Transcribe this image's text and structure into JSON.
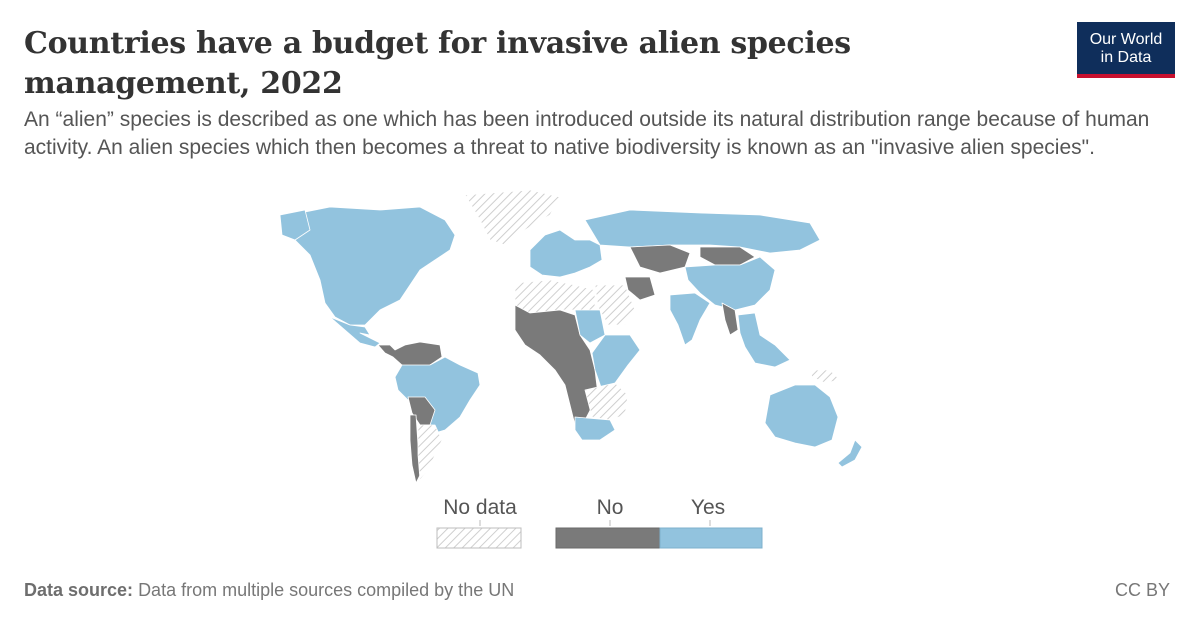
{
  "header": {
    "title": "Countries have a budget for invasive alien species management, 2022",
    "subtitle": "An “alien” species is described as one which has been introduced outside its natural distribution range because of human activity. An alien species which then becomes a threat to native biodiversity is known as an \"invasive alien species\"."
  },
  "logo": {
    "line1": "Our World",
    "line2": "in Data"
  },
  "colors": {
    "yes": "#92c3de",
    "no": "#7a7a7a",
    "no_data_hatch": "#cccccc",
    "border": "#ffffff"
  },
  "legend": {
    "no_data_label": "No data",
    "no_label": "No",
    "yes_label": "Yes"
  },
  "footer": {
    "source_label": "Data source:",
    "source_text": "Data from multiple sources compiled by the UN",
    "license": "CC BY"
  },
  "map": {
    "regions": [
      {
        "name": "North America",
        "status": "yes"
      },
      {
        "name": "Greenland",
        "status": "no_data"
      },
      {
        "name": "Mexico",
        "status": "yes"
      },
      {
        "name": "Central America",
        "status": "no"
      },
      {
        "name": "Brazil",
        "status": "yes"
      },
      {
        "name": "Bolivia",
        "status": "no"
      },
      {
        "name": "Chile",
        "status": "no"
      },
      {
        "name": "Argentina",
        "status": "no_data"
      },
      {
        "name": "Europe",
        "status": "yes"
      },
      {
        "name": "Russia",
        "status": "yes"
      },
      {
        "name": "Kazakhstan",
        "status": "no"
      },
      {
        "name": "Mongolia",
        "status": "no"
      },
      {
        "name": "China",
        "status": "yes"
      },
      {
        "name": "India",
        "status": "yes"
      },
      {
        "name": "Saudi Arabia",
        "status": "no_data"
      },
      {
        "name": "Iran",
        "status": "no"
      },
      {
        "name": "North Africa",
        "status": "no_data"
      },
      {
        "name": "West and Central Africa",
        "status": "no"
      },
      {
        "name": "Sudan",
        "status": "yes"
      },
      {
        "name": "East Africa",
        "status": "yes"
      },
      {
        "name": "Southern Africa",
        "status": "no_data"
      },
      {
        "name": "South Africa",
        "status": "yes"
      },
      {
        "name": "Southeast Asia",
        "status": "yes"
      },
      {
        "name": "Myanmar",
        "status": "no"
      },
      {
        "name": "Australia",
        "status": "yes"
      },
      {
        "name": "New Zealand",
        "status": "yes"
      },
      {
        "name": "Papua New Guinea",
        "status": "no_data"
      }
    ]
  }
}
